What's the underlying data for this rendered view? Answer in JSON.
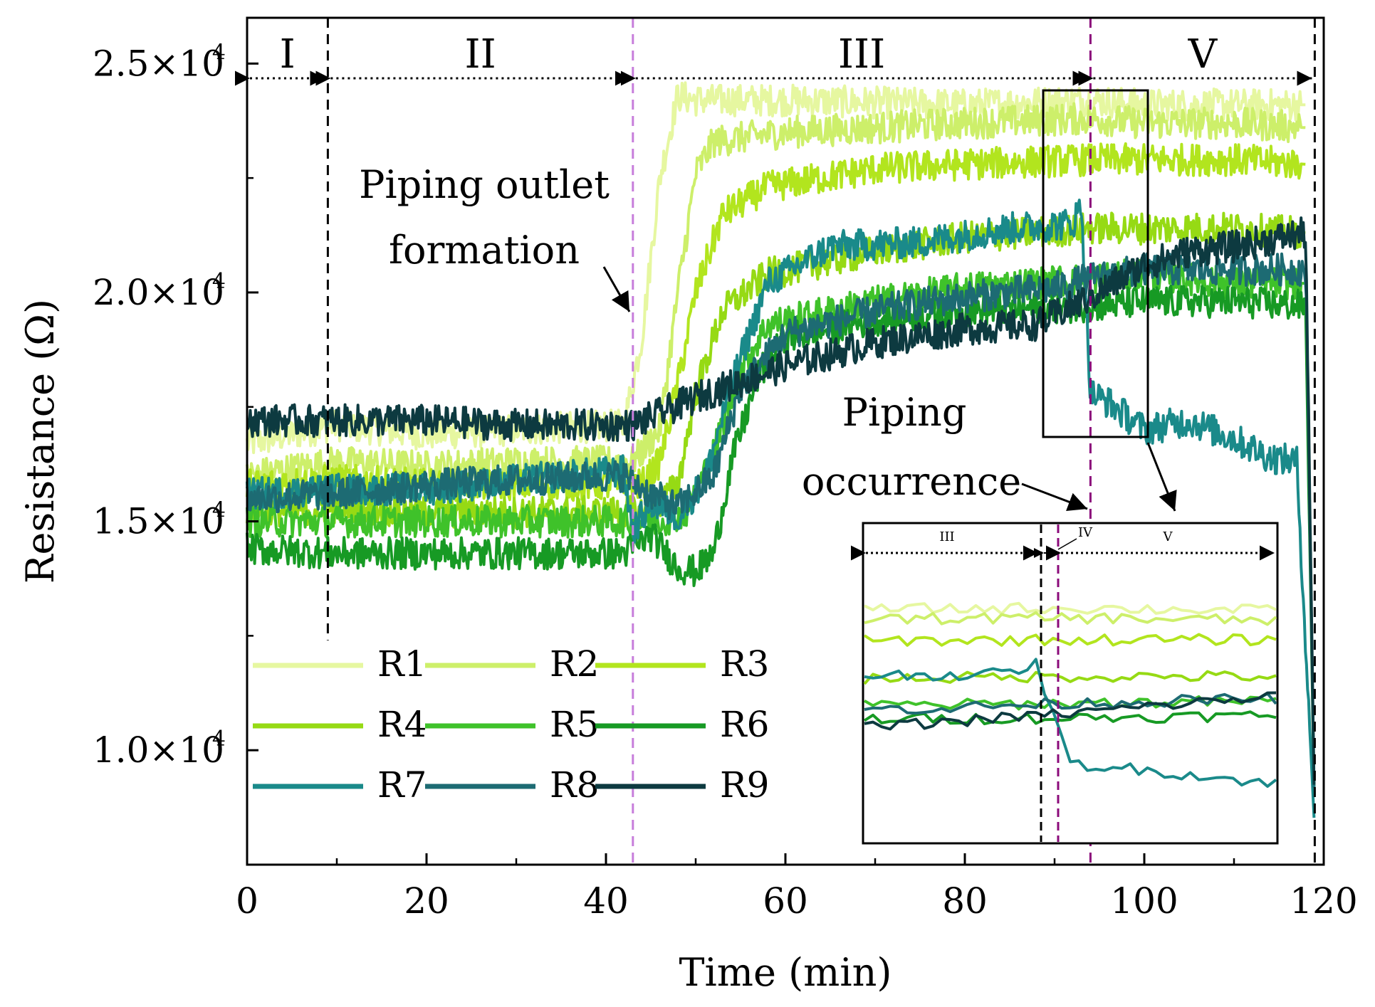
{
  "chart_data": {
    "type": "line",
    "xlabel": "Time (min)",
    "ylabel": "Resistance (Ω)",
    "xlim": [
      0,
      120
    ],
    "ylim": [
      7500,
      26000
    ],
    "x_ticks": [
      0,
      20,
      40,
      60,
      80,
      100,
      120
    ],
    "x_tick_labels": [
      "0",
      "20",
      "40",
      "60",
      "80",
      "100",
      "120"
    ],
    "y_ticks": [
      10000,
      15000,
      20000,
      25000
    ],
    "y_tick_labels": [
      "1.0×10",
      "1.5×10",
      "2.0×10",
      "2.5×10"
    ],
    "y_tick_exponent": "4",
    "grid": false,
    "legend_placement": "bottom-left",
    "phase_boundaries": [
      {
        "x": 9,
        "color": "#000000"
      },
      {
        "x": 43,
        "color": "#c77ddb"
      },
      {
        "x": 94,
        "color": "#8b0a7a"
      },
      {
        "x": 119,
        "color": "#000000"
      }
    ],
    "phases": [
      {
        "label": "I",
        "from": 0,
        "to": 9
      },
      {
        "label": "II",
        "from": 9,
        "to": 43
      },
      {
        "label": "III",
        "from": 43,
        "to": 94
      },
      {
        "label": "V",
        "from": 94,
        "to": 119
      }
    ],
    "annotations": [
      {
        "lines": [
          "Piping outlet",
          "formation"
        ]
      },
      {
        "lines": [
          "Piping",
          "occurrence"
        ]
      }
    ],
    "inset": {
      "x_range": [
        88,
        100
      ],
      "phases": [
        "III",
        "IV",
        "V"
      ]
    },
    "series": [
      {
        "name": "R1",
        "color": "#e6f7a0",
        "points": [
          [
            0,
            16700
          ],
          [
            10,
            17100
          ],
          [
            20,
            16900
          ],
          [
            30,
            17000
          ],
          [
            42,
            17100
          ],
          [
            44,
            19000
          ],
          [
            46,
            22500
          ],
          [
            48,
            24300
          ],
          [
            50,
            24200
          ],
          [
            60,
            24200
          ],
          [
            80,
            24100
          ],
          [
            94,
            24200
          ],
          [
            100,
            24100
          ],
          [
            110,
            24100
          ],
          [
            118,
            24100
          ]
        ]
      },
      {
        "name": "R2",
        "color": "#cdef6a",
        "points": [
          [
            0,
            16000
          ],
          [
            10,
            16300
          ],
          [
            20,
            16200
          ],
          [
            30,
            16300
          ],
          [
            43,
            16300
          ],
          [
            46,
            17000
          ],
          [
            48,
            20000
          ],
          [
            50,
            22600
          ],
          [
            52,
            23300
          ],
          [
            60,
            23500
          ],
          [
            80,
            23700
          ],
          [
            94,
            23800
          ],
          [
            100,
            23700
          ],
          [
            110,
            23700
          ],
          [
            118,
            23600
          ]
        ]
      },
      {
        "name": "R3",
        "color": "#b2e51e",
        "points": [
          [
            0,
            15800
          ],
          [
            10,
            15900
          ],
          [
            20,
            15800
          ],
          [
            30,
            15800
          ],
          [
            44,
            15800
          ],
          [
            46,
            16300
          ],
          [
            48,
            18000
          ],
          [
            50,
            20000
          ],
          [
            53,
            21700
          ],
          [
            58,
            22300
          ],
          [
            70,
            22700
          ],
          [
            80,
            22800
          ],
          [
            94,
            22900
          ],
          [
            100,
            22900
          ],
          [
            110,
            22900
          ],
          [
            118,
            22800
          ]
        ]
      },
      {
        "name": "R4",
        "color": "#96da14",
        "points": [
          [
            0,
            15200
          ],
          [
            10,
            15300
          ],
          [
            20,
            15200
          ],
          [
            30,
            15200
          ],
          [
            45,
            15200
          ],
          [
            48,
            15800
          ],
          [
            50,
            17800
          ],
          [
            53,
            19600
          ],
          [
            58,
            20400
          ],
          [
            70,
            20900
          ],
          [
            80,
            21200
          ],
          [
            94,
            21400
          ],
          [
            100,
            21400
          ],
          [
            110,
            21400
          ],
          [
            118,
            21300
          ]
        ]
      },
      {
        "name": "R5",
        "color": "#3fc22a",
        "points": [
          [
            0,
            15000
          ],
          [
            10,
            15000
          ],
          [
            20,
            15000
          ],
          [
            30,
            15000
          ],
          [
            46,
            15000
          ],
          [
            49,
            15200
          ],
          [
            52,
            16500
          ],
          [
            55,
            18300
          ],
          [
            58,
            19300
          ],
          [
            70,
            19800
          ],
          [
            80,
            20100
          ],
          [
            94,
            20300
          ],
          [
            100,
            20400
          ],
          [
            110,
            20200
          ],
          [
            118,
            20200
          ]
        ]
      },
      {
        "name": "R6",
        "color": "#179a24",
        "points": [
          [
            0,
            14400
          ],
          [
            10,
            14300
          ],
          [
            20,
            14300
          ],
          [
            30,
            14300
          ],
          [
            42,
            14300
          ],
          [
            45,
            14700
          ],
          [
            48,
            14000
          ],
          [
            50,
            13900
          ],
          [
            52,
            14300
          ],
          [
            54,
            16300
          ],
          [
            57,
            18200
          ],
          [
            60,
            19000
          ],
          [
            70,
            19400
          ],
          [
            80,
            19600
          ],
          [
            94,
            19700
          ],
          [
            100,
            19800
          ],
          [
            110,
            19800
          ],
          [
            118,
            19700
          ],
          [
            119,
            8200
          ]
        ]
      },
      {
        "name": "R7",
        "color": "#1a8a8a",
        "points": [
          [
            0,
            15600
          ],
          [
            10,
            15700
          ],
          [
            20,
            15700
          ],
          [
            30,
            15900
          ],
          [
            42,
            16100
          ],
          [
            43,
            14800
          ],
          [
            45,
            15400
          ],
          [
            48,
            15100
          ],
          [
            51,
            15900
          ],
          [
            54,
            18000
          ],
          [
            58,
            20200
          ],
          [
            65,
            21000
          ],
          [
            75,
            21100
          ],
          [
            85,
            21400
          ],
          [
            92,
            21500
          ],
          [
            93,
            21900
          ],
          [
            94,
            17800
          ],
          [
            96,
            17600
          ],
          [
            100,
            17000
          ],
          [
            105,
            17200
          ],
          [
            110,
            16800
          ],
          [
            114,
            16400
          ],
          [
            117,
            16300
          ],
          [
            119,
            8200
          ]
        ]
      },
      {
        "name": "R8",
        "color": "#1d6b73",
        "points": [
          [
            0,
            15500
          ],
          [
            10,
            15600
          ],
          [
            20,
            15800
          ],
          [
            30,
            15900
          ],
          [
            42,
            16000
          ],
          [
            45,
            15600
          ],
          [
            48,
            15300
          ],
          [
            52,
            16000
          ],
          [
            55,
            17900
          ],
          [
            60,
            19100
          ],
          [
            70,
            19600
          ],
          [
            80,
            19900
          ],
          [
            90,
            20100
          ],
          [
            94,
            20300
          ],
          [
            100,
            20500
          ],
          [
            110,
            20500
          ],
          [
            118,
            20500
          ],
          [
            119,
            8200
          ]
        ]
      },
      {
        "name": "R9",
        "color": "#0d3a40",
        "points": [
          [
            0,
            17200
          ],
          [
            10,
            17200
          ],
          [
            20,
            17200
          ],
          [
            30,
            17100
          ],
          [
            43,
            17100
          ],
          [
            50,
            17700
          ],
          [
            60,
            18400
          ],
          [
            70,
            18900
          ],
          [
            80,
            19200
          ],
          [
            88,
            19300
          ],
          [
            94,
            19900
          ],
          [
            100,
            20600
          ],
          [
            105,
            20900
          ],
          [
            110,
            21000
          ],
          [
            118,
            21300
          ],
          [
            119,
            8200
          ]
        ]
      }
    ]
  }
}
